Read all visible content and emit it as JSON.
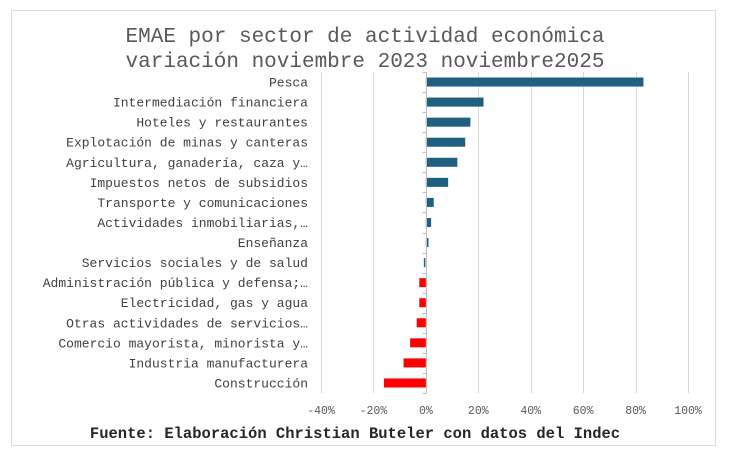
{
  "chart_data": {
    "type": "bar",
    "orientation": "horizontal",
    "title": [
      "EMAE por sector de actividad económica",
      "variación noviembre 2023 noviembre2025"
    ],
    "xlabel": "",
    "ylabel": "",
    "xlim": [
      -40,
      100
    ],
    "x_ticks": [
      -40,
      -20,
      0,
      20,
      40,
      60,
      80,
      100
    ],
    "x_tick_labels": [
      "-40%",
      "-20%",
      "0%",
      "20%",
      "40%",
      "60%",
      "80%",
      "100%"
    ],
    "grid": true,
    "legend": "none",
    "colors": {
      "positive": "#1f5f80",
      "negative": "#ff0000"
    },
    "categories": [
      "Pesca",
      "Intermediación financiera",
      "Hoteles y restaurantes",
      "Explotación de minas y canteras",
      "Agricultura, ganadería, caza y…",
      "Impuestos netos de subsidios",
      "Transporte y comunicaciones",
      "Actividades inmobiliarias,…",
      "Enseñanza",
      "Servicios sociales y de salud",
      "Administración pública y defensa;…",
      "Electricidad, gas y agua",
      "Otras actividades de servicios…",
      "Comercio mayorista, minorista y…",
      "Industria manufacturera",
      "Construcción"
    ],
    "values": [
      83,
      22,
      17,
      15,
      12,
      8.5,
      3,
      2,
      1,
      0.5,
      -2.5,
      -2.5,
      -3.5,
      -6,
      -8.5,
      -16
    ],
    "unit": "%"
  },
  "footer": {
    "source": "Fuente: Elaboración Christian Buteler con datos del Indec"
  }
}
